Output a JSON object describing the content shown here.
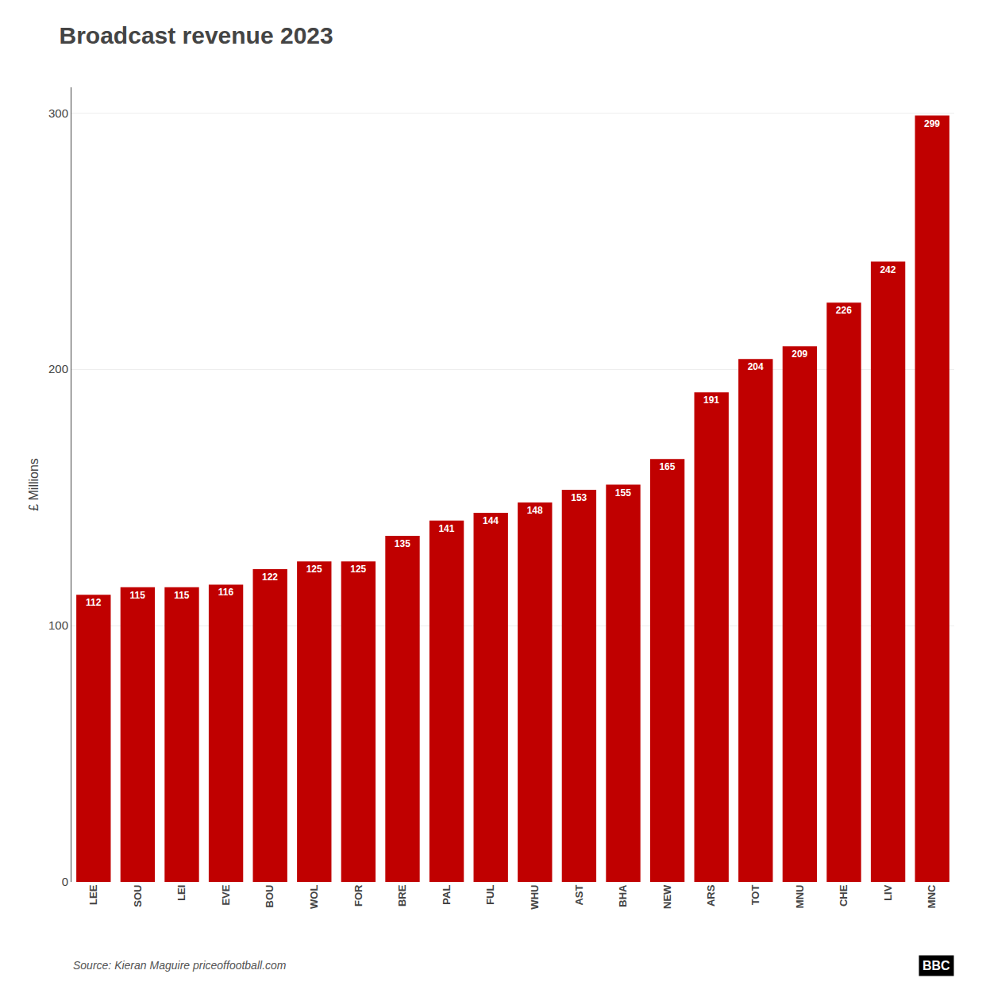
{
  "chart_data": {
    "type": "bar",
    "title": "Broadcast revenue 2023",
    "ylabel": "£ Millions",
    "annotations": [
      "Source: Kieran Maguire priceoffootball.com",
      "BBC"
    ],
    "categories": [
      "LEE",
      "SOU",
      "LEI",
      "EVE",
      "BOU",
      "WOL",
      "FOR",
      "BRE",
      "PAL",
      "FUL",
      "WHU",
      "AST",
      "BHA",
      "NEW",
      "ARS",
      "TOT",
      "MNU",
      "CHE",
      "LIV",
      "MNC"
    ],
    "values": [
      112,
      115,
      115,
      116,
      122,
      125,
      125,
      135,
      141,
      144,
      148,
      153,
      155,
      165,
      191,
      204,
      209,
      226,
      242,
      299
    ],
    "color": "#c00000",
    "ylim": [
      0,
      310
    ],
    "yticks": [
      0,
      100,
      200,
      300
    ],
    "grid": true,
    "data_labels": true
  }
}
